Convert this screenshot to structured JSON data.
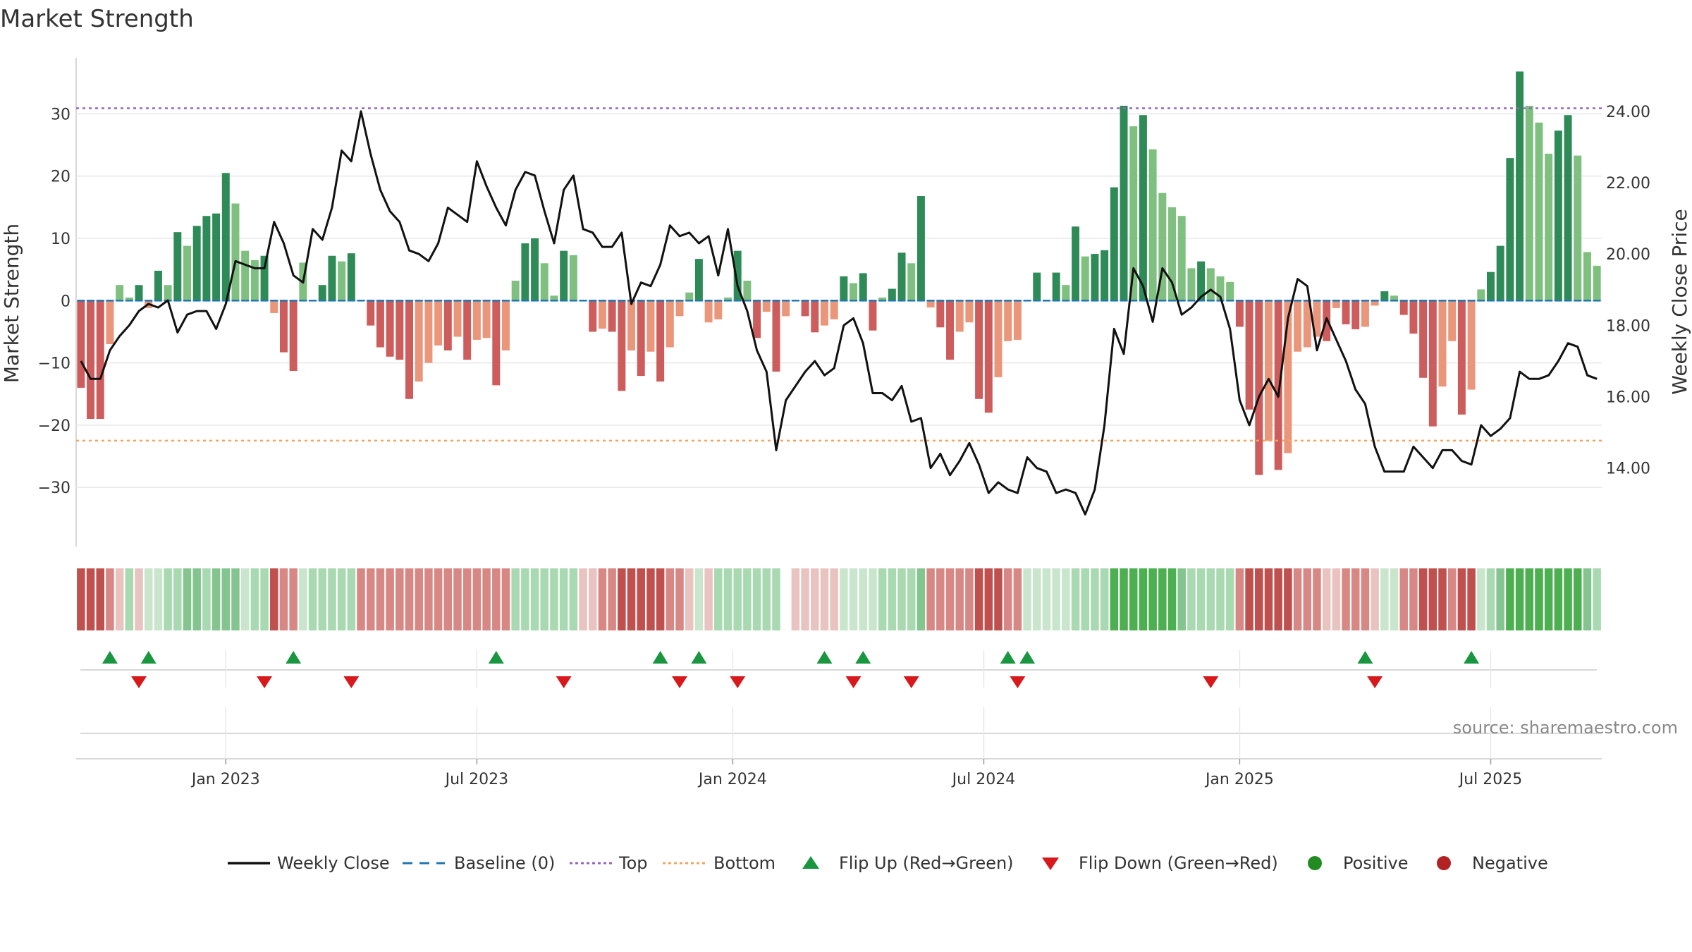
{
  "chart_data": {
    "type": "bar+line",
    "title": "Market Strength",
    "ylabel_left": "Market Strength",
    "ylabel_right": "Weekly Close Price",
    "source": "source: sharemaestro.com",
    "ylim_left": [
      -39.5,
      39.0
    ],
    "ylim_right": [
      11.8,
      25.5
    ],
    "left_ticks": [
      30,
      20,
      10,
      0,
      -10,
      -20,
      -30
    ],
    "left_tick_labels": [
      "30",
      "20",
      "10",
      "0",
      "−10",
      "−20",
      "−30"
    ],
    "right_ticks": [
      24,
      22,
      20,
      18,
      16,
      14
    ],
    "right_tick_labels": [
      "24.00",
      "22.00",
      "20.00",
      "18.00",
      "16.00",
      "14.00"
    ],
    "top_threshold": 30.9,
    "bottom_threshold": -22.5,
    "x_tick_labels": [
      "Jan 2023",
      "Jul 2023",
      "Jan 2024",
      "Jul 2024",
      "Jan 2025",
      "Jul 2025"
    ],
    "x_tick_weeks": [
      15,
      41,
      67.5,
      93.5,
      120,
      146
    ],
    "strength": [
      -14,
      -19,
      -19,
      -7,
      2.5,
      0.5,
      2.5,
      -1.2,
      4.8,
      2.5,
      11,
      8.8,
      12,
      13.6,
      14,
      20.5,
      15.6,
      8,
      6.5,
      7.2,
      -2,
      -8.3,
      -11.3,
      6.1,
      0,
      2.5,
      7.2,
      6.3,
      7.6,
      0,
      -4,
      -7.5,
      -9,
      -9.5,
      -15.8,
      -13,
      -10,
      -7.2,
      -8,
      -5.8,
      -9.5,
      -6.3,
      -6,
      -13.6,
      -8,
      3.2,
      9.2,
      10,
      6,
      0.8,
      8,
      7.3,
      0,
      -5,
      -4.5,
      -5,
      -14.5,
      -8,
      -12.1,
      -8.2,
      -13,
      -7.5,
      -2.5,
      1.3,
      6.7,
      -3.5,
      -3,
      0.5,
      8,
      3.2,
      -6,
      -1.8,
      -11.4,
      -2.5,
      0,
      -2.5,
      -5.1,
      -4,
      -3,
      3.9,
      2.8,
      4.4,
      -4.8,
      0.5,
      1.9,
      7.7,
      6,
      16.8,
      -1.1,
      -4.3,
      -9.5,
      -5,
      -3.5,
      -15.8,
      -18,
      -12.3,
      -6.5,
      -6.3,
      0,
      4.5,
      0,
      4.5,
      2.5,
      11.9,
      7.1,
      7.5,
      8.1,
      18.2,
      31.3,
      28,
      29.8,
      24.3,
      17.3,
      15,
      13.6,
      5.2,
      6.3,
      5.2,
      3.9,
      3,
      -4.2,
      -17.5,
      -28,
      -22.5,
      -27.2,
      -24.5,
      -8.2,
      -7.5,
      -5.8,
      -6.5,
      -1.2,
      -3.8,
      -4.6,
      -4.2,
      -0.8,
      1.5,
      0.8,
      -2.3,
      -5.3,
      -12.4,
      -20.2,
      -13.8,
      -6.5,
      -18.3,
      -14.3,
      1.8,
      4.6,
      8.8,
      22.9,
      36.8,
      31.3,
      28.6,
      23.6,
      27.3,
      29.8,
      23.3,
      7.8,
      5.6
    ],
    "close_price": [
      17.0,
      16.5,
      16.5,
      17.3,
      17.7,
      18.0,
      18.4,
      18.6,
      18.5,
      18.7,
      17.8,
      18.3,
      18.4,
      18.4,
      17.9,
      18.6,
      19.8,
      19.7,
      19.6,
      19.6,
      20.9,
      20.3,
      19.4,
      19.2,
      20.7,
      20.4,
      21.3,
      22.9,
      22.6,
      24.0,
      22.8,
      21.8,
      21.2,
      20.9,
      20.1,
      20.0,
      19.8,
      20.3,
      21.3,
      21.1,
      20.9,
      22.6,
      21.9,
      21.3,
      20.8,
      21.8,
      22.3,
      22.2,
      21.2,
      20.3,
      21.8,
      22.2,
      20.7,
      20.6,
      20.2,
      20.2,
      20.6,
      18.6,
      19.2,
      19.1,
      19.7,
      20.8,
      20.5,
      20.6,
      20.3,
      20.5,
      19.4,
      20.7,
      19.1,
      18.4,
      17.3,
      16.7,
      14.5,
      15.9,
      16.3,
      16.7,
      17.0,
      16.6,
      16.8,
      18.0,
      18.2,
      17.5,
      16.1,
      16.1,
      15.9,
      16.3,
      15.3,
      15.4,
      14.0,
      14.4,
      13.8,
      14.2,
      14.7,
      14.1,
      13.3,
      13.6,
      13.4,
      13.3,
      14.3,
      14.0,
      13.9,
      13.3,
      13.4,
      13.3,
      12.7,
      13.4,
      15.2,
      17.9,
      17.2,
      19.6,
      19.1,
      18.1,
      19.6,
      19.2,
      18.3,
      18.5,
      18.8,
      19.0,
      18.8,
      17.9,
      15.9,
      15.2,
      16.0,
      16.5,
      16.0,
      18.2,
      19.3,
      19.1,
      17.3,
      18.2,
      17.6,
      17.0,
      16.2,
      15.8,
      14.6,
      13.9,
      13.9,
      13.9,
      14.6,
      14.3,
      14.0,
      14.5,
      14.5,
      14.2,
      14.1,
      15.2,
      14.9,
      15.1,
      15.4,
      16.7,
      16.5,
      16.5,
      16.6,
      17.0,
      17.5,
      17.4,
      16.6,
      16.5
    ],
    "categories": [
      1,
      1,
      1,
      2,
      3,
      5,
      3,
      4,
      4,
      5,
      5,
      6,
      6,
      5,
      6,
      6,
      6,
      4,
      5,
      5,
      1,
      2,
      2,
      4,
      5,
      5,
      5,
      5,
      5,
      2,
      2,
      2,
      2,
      2,
      2,
      2,
      2,
      2,
      2,
      2,
      2,
      2,
      2,
      2,
      2,
      5,
      5,
      5,
      5,
      5,
      5,
      5,
      3,
      3,
      2,
      2,
      1,
      1,
      1,
      1,
      1,
      2,
      2,
      3,
      4,
      3,
      5,
      5,
      5,
      5,
      5,
      5,
      5,
      0,
      3,
      3,
      3,
      3,
      3,
      4,
      4,
      4,
      4,
      5,
      5,
      5,
      5,
      6,
      2,
      2,
      2,
      2,
      2,
      1,
      1,
      1,
      2,
      2,
      4,
      4,
      4,
      4,
      4,
      5,
      5,
      5,
      5,
      7,
      7,
      7,
      7,
      7,
      7,
      7,
      6,
      5,
      5,
      5,
      5,
      5,
      2,
      1,
      1,
      1,
      1,
      1,
      2,
      2,
      2,
      3,
      3,
      2,
      2,
      2,
      3,
      4,
      4,
      2,
      2,
      1,
      1,
      1,
      2,
      1,
      1,
      4,
      5,
      6,
      7,
      7,
      7,
      7,
      7,
      7,
      7,
      7,
      6,
      5
    ],
    "flip_up_weeks": [
      3,
      7,
      22,
      43,
      60,
      64,
      77,
      81,
      96,
      98,
      133,
      144
    ],
    "flip_down_weeks": [
      6,
      19,
      28,
      50,
      62,
      68,
      80,
      86,
      97,
      117,
      134
    ],
    "legend": [
      {
        "key": "weekly-close",
        "label": "Weekly Close"
      },
      {
        "key": "baseline",
        "label": "Baseline (0)"
      },
      {
        "key": "top",
        "label": "Top"
      },
      {
        "key": "bottom",
        "label": "Bottom"
      },
      {
        "key": "flip-up",
        "label": "Flip Up (Red→Green)"
      },
      {
        "key": "flip-down",
        "label": "Flip Down (Green→Red)"
      },
      {
        "key": "positive",
        "label": "Positive"
      },
      {
        "key": "negative",
        "label": "Negative"
      }
    ],
    "colors": {
      "pos_dark": "#2e8b57",
      "pos_light": "#7fbf7f",
      "neg_dark": "#cd5c5c",
      "neg_light": "#e9967a",
      "line": "#111111",
      "baseline": "#1f77b4",
      "top": "#9467bd",
      "bottom": "#f4a460",
      "up": "#1a9641",
      "down": "#d7191c",
      "positive_dot": "#228b22",
      "negative_dot": "#b22222",
      "grid": "#e8e8e8",
      "axis": "#cccccc",
      "strip": [
        "#ffffff",
        "#c0504d",
        "#d88884",
        "#e9c3c0",
        "#c9e6cd",
        "#a9d9b1",
        "#84c58f",
        "#4caf50"
      ]
    }
  }
}
